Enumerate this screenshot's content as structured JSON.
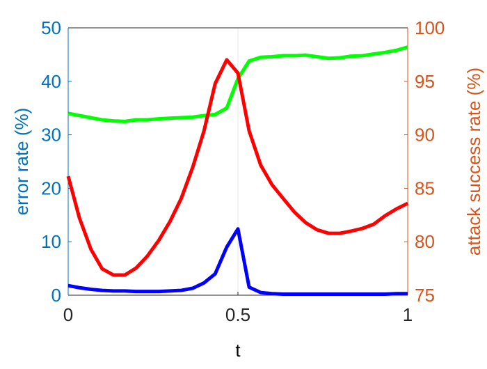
{
  "chart_data": {
    "type": "line",
    "xlabel": "t",
    "ylabel": "error rate (%)",
    "y2label": "attack success rate (%)",
    "x": [
      0,
      0.033,
      0.067,
      0.1,
      0.133,
      0.167,
      0.2,
      0.233,
      0.267,
      0.3,
      0.333,
      0.367,
      0.4,
      0.433,
      0.467,
      0.5,
      0.533,
      0.567,
      0.6,
      0.633,
      0.667,
      0.7,
      0.733,
      0.767,
      0.8,
      0.833,
      0.867,
      0.9,
      0.933,
      0.967,
      1
    ],
    "series": [
      {
        "color": "#0000ff",
        "axis": "y",
        "values": [
          1.8,
          1.4,
          1.1,
          0.9,
          0.8,
          0.8,
          0.7,
          0.7,
          0.7,
          0.8,
          0.9,
          1.3,
          2.3,
          4,
          9,
          12.4,
          1.5,
          0.5,
          0.3,
          0.2,
          0.2,
          0.2,
          0.2,
          0.2,
          0.2,
          0.2,
          0.2,
          0.2,
          0.2,
          0.3,
          0.3
        ]
      },
      {
        "color": "#00ff00",
        "axis": "y",
        "values": [
          34,
          33.6,
          33.2,
          32.8,
          32.6,
          32.5,
          32.8,
          32.8,
          33,
          33.1,
          33.2,
          33.3,
          33.6,
          33.8,
          35,
          40.5,
          43.8,
          44.5,
          44.6,
          44.8,
          44.8,
          44.9,
          44.6,
          44.3,
          44.4,
          44.7,
          44.8,
          45.1,
          45.4,
          45.8,
          46.4
        ]
      },
      {
        "color": "#ff0000",
        "axis": "y2",
        "values": [
          86.13,
          82.23,
          79.3,
          77.47,
          76.89,
          76.89,
          77.54,
          78.65,
          80.14,
          81.9,
          84.05,
          86.98,
          90.36,
          94.79,
          97.01,
          95.77,
          90.36,
          87.17,
          85.35,
          84.05,
          82.75,
          81.77,
          81.12,
          80.79,
          80.79,
          80.99,
          81.25,
          81.64,
          82.42,
          83.07,
          83.59
        ]
      }
    ],
    "xlim": [
      0,
      1
    ],
    "xticks": [
      0,
      0.5,
      1
    ],
    "ylim": [
      0,
      50
    ],
    "yticks": [
      0,
      10,
      20,
      30,
      40,
      50
    ],
    "ycolor": "#0072bd",
    "y2lim": [
      75,
      100
    ],
    "y2ticks": [
      75,
      80,
      85,
      90,
      95,
      100
    ],
    "y2color": "#d95319",
    "xgrid": true
  }
}
